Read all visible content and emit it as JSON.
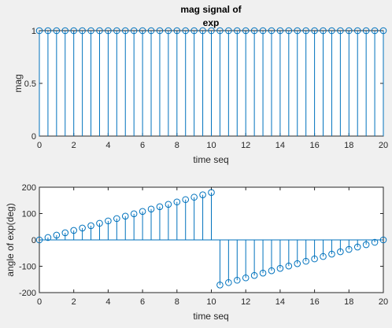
{
  "colors": {
    "figure_background": "#f0f0f0",
    "axes_background": "#ffffff",
    "axes_color": "#262626",
    "series_color": "#0072bd"
  },
  "chart_data": [
    {
      "type": "stem",
      "title_lines": [
        "mag signal of",
        "exp"
      ],
      "xlabel": "time seq",
      "ylabel": "mag",
      "xlim": [
        0,
        20
      ],
      "ylim": [
        0,
        1
      ],
      "xticks": [
        0,
        2,
        4,
        6,
        8,
        10,
        12,
        14,
        16,
        18,
        20
      ],
      "yticks": [
        0,
        0.5,
        1
      ],
      "ytick_labels": [
        "0",
        "0.5",
        "1"
      ],
      "grid": false,
      "series": [
        {
          "x": [
            0,
            0.5,
            1,
            1.5,
            2,
            2.5,
            3,
            3.5,
            4,
            4.5,
            5,
            5.5,
            6,
            6.5,
            7,
            7.5,
            8,
            8.5,
            9,
            9.5,
            10,
            10.5,
            11,
            11.5,
            12,
            12.5,
            13,
            13.5,
            14,
            14.5,
            15,
            15.5,
            16,
            16.5,
            17,
            17.5,
            18,
            18.5,
            19,
            19.5,
            20
          ],
          "y": [
            1,
            1,
            1,
            1,
            1,
            1,
            1,
            1,
            1,
            1,
            1,
            1,
            1,
            1,
            1,
            1,
            1,
            1,
            1,
            1,
            1,
            1,
            1,
            1,
            1,
            1,
            1,
            1,
            1,
            1,
            1,
            1,
            1,
            1,
            1,
            1,
            1,
            1,
            1,
            1,
            1
          ]
        }
      ]
    },
    {
      "type": "stem",
      "xlabel": "time seq",
      "ylabel": "angle of exp(deg)",
      "xlim": [
        0,
        20
      ],
      "ylim": [
        -200,
        200
      ],
      "xticks": [
        0,
        2,
        4,
        6,
        8,
        10,
        12,
        14,
        16,
        18,
        20
      ],
      "yticks": [
        -200,
        -100,
        0,
        100,
        200
      ],
      "ytick_labels": [
        "-200",
        "-100",
        "0",
        "100",
        "200"
      ],
      "grid": false,
      "series": [
        {
          "x": [
            0,
            0.5,
            1,
            1.5,
            2,
            2.5,
            3,
            3.5,
            4,
            4.5,
            5,
            5.5,
            6,
            6.5,
            7,
            7.5,
            8,
            8.5,
            9,
            9.5,
            10,
            10.5,
            11,
            11.5,
            12,
            12.5,
            13,
            13.5,
            14,
            14.5,
            15,
            15.5,
            16,
            16.5,
            17,
            17.5,
            18,
            18.5,
            19,
            19.5,
            20
          ],
          "y": [
            0,
            9,
            18,
            27,
            36,
            45,
            54,
            63,
            72,
            81,
            90,
            99,
            108,
            117,
            126,
            135,
            144,
            153,
            162,
            171,
            180,
            -171,
            -162,
            -153,
            -144,
            -135,
            -126,
            -117,
            -108,
            -99,
            -90,
            -81,
            -72,
            -63,
            -54,
            -45,
            -36,
            -27,
            -18,
            -9,
            0
          ]
        }
      ]
    }
  ]
}
